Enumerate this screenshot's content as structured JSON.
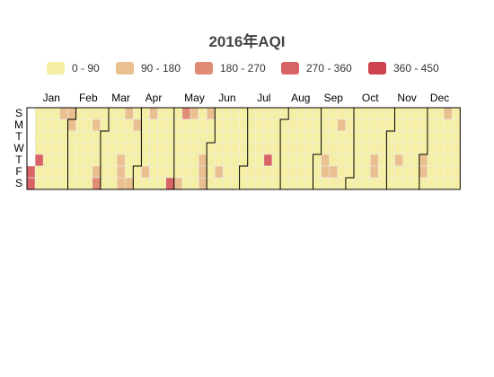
{
  "chart_data": {
    "type": "heatmap",
    "title": "2016年AQI",
    "year": 2016,
    "legend": {
      "placement": "top",
      "pieces": [
        {
          "label": "0 - 90",
          "min": 0,
          "max": 90,
          "color": "#f5efa6"
        },
        {
          "label": "90 - 180",
          "min": 90,
          "max": 180,
          "color": "#eac090"
        },
        {
          "label": "180 - 270",
          "min": 180,
          "max": 270,
          "color": "#e08c75"
        },
        {
          "label": "270 - 360",
          "min": 270,
          "max": 360,
          "color": "#d96466"
        },
        {
          "label": "360 - 450",
          "min": 360,
          "max": 450,
          "color": "#cd4350"
        }
      ]
    },
    "month_labels": [
      "Jan",
      "Feb",
      "Mar",
      "Apr",
      "May",
      "Jun",
      "Jul",
      "Aug",
      "Sep",
      "Oct",
      "Nov",
      "Dec"
    ],
    "day_labels": [
      "S",
      "M",
      "T",
      "W",
      "T",
      "F",
      "S"
    ],
    "week_start": "Sunday",
    "values": [
      [
        270,
        270,
        60,
        60,
        60,
        60
      ],
      [
        300,
        60,
        60,
        60,
        60,
        60,
        60
      ],
      [
        60,
        60,
        60,
        60,
        60,
        60,
        60
      ],
      [
        60,
        60,
        60,
        120,
        60,
        60,
        60
      ],
      [
        60,
        60,
        60,
        120,
        120,
        60,
        60
      ],
      [
        60,
        60,
        60,
        60,
        60,
        60,
        60
      ],
      [
        60,
        60,
        60,
        60,
        60,
        60,
        60
      ],
      [
        60,
        60,
        60,
        60,
        120,
        60,
        60
      ],
      [
        60,
        120,
        200,
        60,
        60,
        60,
        60
      ],
      [
        60,
        60,
        60,
        60,
        60,
        60,
        60
      ],
      [
        60,
        60,
        60,
        60,
        60,
        60,
        60
      ],
      [
        120,
        120,
        120,
        120,
        60,
        60,
        60
      ],
      [
        60,
        60,
        120,
        60,
        120,
        60,
        60
      ],
      [
        60,
        60,
        60,
        60,
        60,
        60,
        60
      ],
      [
        60,
        120,
        60,
        120,
        60,
        60,
        60
      ],
      [
        60,
        60,
        60,
        60,
        60,
        60,
        60
      ],
      [
        60,
        60,
        60,
        60,
        60,
        60,
        60
      ],
      [
        60,
        60,
        300,
        60,
        60,
        60,
        60
      ],
      [
        60,
        60,
        120,
        200,
        60,
        60,
        60
      ],
      [
        60,
        60,
        60,
        120,
        60,
        60,
        60
      ],
      [
        60,
        60,
        60,
        60,
        60,
        60,
        60
      ],
      [
        120,
        120,
        120,
        120,
        60,
        60,
        60
      ],
      [
        60,
        60,
        60,
        60,
        60,
        60,
        60
      ],
      [
        60,
        120,
        60,
        60,
        60,
        60,
        60
      ],
      [
        60,
        60,
        60,
        60,
        60,
        60,
        60
      ],
      [
        60,
        60,
        60,
        60,
        60,
        60,
        60
      ],
      [
        60,
        60,
        60,
        60,
        60,
        60,
        60
      ],
      [
        60,
        60,
        60,
        60,
        60,
        60,
        60
      ],
      [
        60,
        60,
        60,
        60,
        60,
        60,
        60
      ],
      [
        300,
        60,
        60,
        60,
        60,
        60,
        60
      ],
      [
        60,
        60,
        60,
        60,
        60,
        60,
        60
      ],
      [
        60,
        60,
        60,
        60,
        60,
        60,
        60
      ],
      [
        60,
        60,
        60,
        60,
        60,
        60,
        60
      ],
      [
        60,
        60,
        60,
        60,
        60,
        60,
        60
      ],
      [
        60,
        60,
        60,
        60,
        60,
        60,
        60
      ],
      [
        60,
        60,
        60,
        60,
        60,
        60,
        60
      ],
      [
        120,
        120,
        60,
        60,
        60,
        60,
        60
      ],
      [
        60,
        120,
        60,
        60,
        120,
        60,
        60
      ],
      [
        60,
        60,
        60,
        60,
        60,
        60,
        60
      ],
      [
        60,
        60,
        60,
        60,
        60,
        60,
        60
      ],
      [
        60,
        60,
        60,
        60,
        60,
        60,
        60
      ],
      [
        60,
        60,
        60,
        60,
        60,
        60,
        60
      ],
      [
        120,
        120,
        60,
        60,
        60,
        60,
        60
      ],
      [
        60,
        60,
        60,
        60,
        60,
        60,
        60
      ],
      [
        60,
        60,
        60,
        60,
        60,
        60,
        60
      ],
      [
        120,
        60,
        60,
        60,
        60,
        60,
        60
      ],
      [
        60,
        60,
        60,
        60,
        60,
        60,
        60
      ],
      [
        60,
        60,
        60,
        60,
        60,
        60,
        60
      ],
      [
        120,
        120,
        60,
        60,
        60,
        60,
        60
      ],
      [
        60,
        60,
        60,
        60,
        60,
        60,
        60
      ],
      [
        60,
        60,
        60,
        120,
        60,
        60,
        60
      ],
      [
        60,
        60,
        60,
        60,
        60,
        60,
        60
      ],
      [
        60,
        60,
        60,
        60,
        60,
        60,
        60
      ],
      [
        60,
        60,
        60,
        60,
        60,
        60,
        60
      ],
      [
        60,
        60,
        60,
        60,
        60,
        60,
        60
      ],
      [
        60,
        60,
        60,
        60,
        60,
        60,
        60
      ],
      [
        60,
        60,
        60,
        60,
        60,
        60,
        60
      ],
      [
        60,
        60,
        60,
        60,
        60,
        60,
        60
      ],
      [
        60,
        60,
        60,
        60,
        60,
        60,
        60
      ],
      [
        60,
        60,
        60,
        60,
        60,
        60,
        60
      ],
      [
        60,
        60,
        60,
        60,
        60,
        60,
        60
      ],
      [
        60,
        60,
        60,
        60,
        60,
        60,
        60
      ],
      [
        60,
        60,
        60,
        60,
        60,
        60,
        60
      ],
      [
        60,
        60,
        60,
        60,
        60,
        60,
        60
      ],
      [
        60,
        60,
        60,
        60,
        60,
        60,
        60
      ],
      [
        60,
        60,
        60,
        60,
        60,
        60,
        60
      ],
      [
        60,
        60,
        60,
        60,
        60,
        60,
        60
      ],
      [
        60,
        60,
        60,
        60,
        60,
        60,
        60
      ],
      [
        60,
        60,
        60,
        60,
        60,
        60,
        60
      ],
      [
        60,
        60,
        60,
        60,
        60,
        60,
        60
      ],
      [
        60,
        60,
        60,
        60,
        60,
        60,
        60
      ],
      [
        60,
        60,
        60,
        60,
        60,
        60,
        60
      ],
      [
        60,
        60,
        60,
        60,
        60,
        60,
        60
      ],
      [
        60,
        60,
        60,
        60,
        60,
        60,
        60
      ],
      [
        60,
        60,
        60,
        60,
        60,
        60,
        60
      ],
      [
        60,
        60,
        60,
        60,
        60,
        60,
        60
      ],
      [
        60,
        60,
        60,
        60,
        60,
        60,
        60
      ],
      [
        60,
        60,
        60,
        60,
        60,
        60,
        60
      ],
      [
        60,
        60,
        60,
        60,
        60,
        60,
        60
      ],
      [
        60,
        60,
        60,
        60,
        60,
        60,
        60
      ],
      [
        60,
        60,
        60,
        60,
        60,
        60,
        60
      ],
      [
        60,
        60,
        60,
        60,
        60,
        60,
        60
      ],
      [
        60,
        60,
        60,
        60,
        60,
        60,
        60
      ],
      [
        60,
        60,
        60,
        60,
        60,
        60,
        60
      ],
      [
        60,
        60,
        60,
        60,
        60,
        60,
        60
      ],
      [
        60,
        60,
        60,
        60,
        60,
        60,
        60
      ],
      [
        60,
        60,
        60,
        60,
        60,
        60,
        60
      ],
      [
        60,
        60,
        60,
        60,
        60,
        60,
        60
      ],
      [
        60,
        60,
        60,
        60,
        60,
        60,
        60
      ],
      [
        60,
        60,
        60,
        60,
        60,
        60,
        60
      ],
      [
        60,
        60,
        60,
        60,
        60,
        60,
        60
      ],
      [
        60,
        60,
        60,
        60,
        60,
        60,
        60
      ],
      [
        60,
        60,
        60,
        60,
        60,
        60,
        60
      ],
      [
        60,
        60,
        60,
        60,
        60,
        60,
        60
      ],
      [
        60,
        60,
        60,
        60,
        60,
        60,
        60
      ],
      [
        60,
        60,
        60,
        60,
        60,
        60,
        60
      ],
      [
        60,
        60,
        60,
        60,
        60,
        60,
        60
      ],
      [
        60,
        60,
        60,
        60,
        60,
        60,
        60
      ],
      [
        60,
        60,
        60,
        60,
        60,
        60,
        60
      ],
      [
        60,
        60,
        60,
        60,
        60,
        60,
        60
      ],
      [
        60,
        60,
        60,
        60,
        60,
        60,
        60
      ],
      [
        60,
        60,
        60,
        60,
        60,
        60,
        60
      ],
      [
        60,
        60,
        60,
        60,
        60,
        60,
        60
      ],
      [
        60,
        60,
        60,
        60,
        60,
        60,
        60
      ],
      [
        60,
        60,
        60,
        60,
        60,
        60,
        60
      ],
      [
        60,
        60,
        60,
        60,
        60,
        60,
        60
      ],
      [
        60,
        60,
        60,
        60,
        60,
        60,
        60
      ],
      [
        60,
        60,
        60,
        60,
        60,
        60,
        60
      ],
      [
        60,
        60,
        60,
        60,
        60,
        60,
        60
      ],
      [
        60,
        60,
        60,
        60,
        60,
        60,
        60
      ],
      [
        60,
        60,
        60,
        60,
        60,
        60,
        60
      ],
      [
        60,
        60,
        60,
        60,
        60,
        60,
        60
      ]
    ]
  }
}
